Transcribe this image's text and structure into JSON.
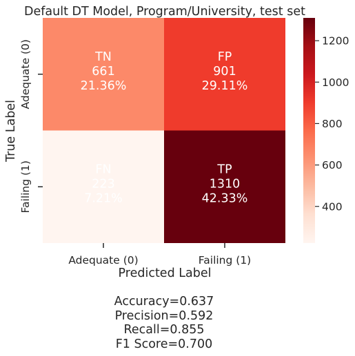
{
  "chart_data": {
    "type": "heatmap",
    "title": "Default DT Model, Program/University, test set",
    "xlabel": "Predicted Label",
    "ylabel": "True Label",
    "x_categories": [
      "Adequate (0)",
      "Failing (1)"
    ],
    "y_categories": [
      "Adequate (0)",
      "Failing (1)"
    ],
    "cells": [
      [
        {
          "label": "TN",
          "count": "661",
          "pct": "21.36%",
          "value": 661
        },
        {
          "label": "FP",
          "count": "901",
          "pct": "29.11%",
          "value": 901
        }
      ],
      [
        {
          "label": "FN",
          "count": "223",
          "pct": "7.21%",
          "value": 223
        },
        {
          "label": "TP",
          "count": "1310",
          "pct": "42.33%",
          "value": 1310
        }
      ]
    ],
    "colorbar": {
      "colormap": "Reds",
      "vmin": 223,
      "vmax": 1310,
      "ticks": [
        "400",
        "600",
        "800",
        "1000",
        "1200"
      ]
    }
  },
  "metrics": {
    "accuracy": "Accuracy=0.637",
    "precision": "Precision=0.592",
    "recall": "Recall=0.855",
    "f1": "F1 Score=0.700"
  }
}
